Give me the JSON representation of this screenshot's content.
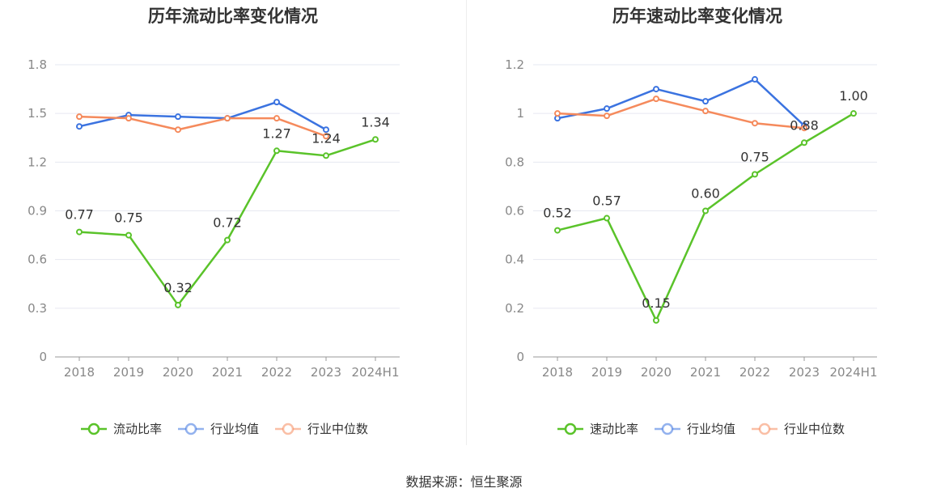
{
  "source": "数据来源：恒生聚源",
  "chart_data": [
    {
      "type": "line",
      "title": "历年流动比率变化情况",
      "categories": [
        "2018",
        "2019",
        "2020",
        "2021",
        "2022",
        "2023",
        "2024H1"
      ],
      "ylim": [
        0,
        1.8
      ],
      "yticks": [
        "0",
        "0.3",
        "0.6",
        "0.9",
        "1.2",
        "1.5",
        "1.8"
      ],
      "series": [
        {
          "name": "流动比率",
          "color": "#5ac32a",
          "values": [
            0.77,
            0.75,
            0.32,
            0.72,
            1.27,
            1.24,
            1.34
          ],
          "labels": [
            "0.77",
            "0.75",
            "0.32",
            "0.72",
            "1.27",
            "1.24",
            "1.34"
          ]
        },
        {
          "name": "行业均值",
          "color": "#3b73e0",
          "values": [
            1.42,
            1.49,
            1.48,
            1.47,
            1.57,
            1.4,
            null
          ]
        },
        {
          "name": "行业中位数",
          "color": "#f58a5c",
          "values": [
            1.48,
            1.47,
            1.4,
            1.47,
            1.47,
            1.36,
            null
          ]
        }
      ],
      "legend": [
        {
          "name": "流动比率",
          "color": "#5ac32a",
          "faded": false
        },
        {
          "name": "行业均值",
          "color": "#3b73e0",
          "faded": true
        },
        {
          "name": "行业中位数",
          "color": "#f58a5c",
          "faded": true
        }
      ]
    },
    {
      "type": "line",
      "title": "历年速动比率变化情况",
      "categories": [
        "2018",
        "2019",
        "2020",
        "2021",
        "2022",
        "2023",
        "2024H1"
      ],
      "ylim": [
        0,
        1.2
      ],
      "yticks": [
        "0",
        "0.2",
        "0.4",
        "0.6",
        "0.8",
        "1",
        "1.2"
      ],
      "series": [
        {
          "name": "速动比率",
          "color": "#5ac32a",
          "values": [
            0.52,
            0.57,
            0.15,
            0.6,
            0.75,
            0.88,
            1.0
          ],
          "labels": [
            "0.52",
            "0.57",
            "0.15",
            "0.60",
            "0.75",
            "0.88",
            "1.00"
          ]
        },
        {
          "name": "行业均值",
          "color": "#3b73e0",
          "values": [
            0.98,
            1.02,
            1.1,
            1.05,
            1.14,
            0.95,
            null
          ]
        },
        {
          "name": "行业中位数",
          "color": "#f58a5c",
          "values": [
            1.0,
            0.99,
            1.06,
            1.01,
            0.96,
            0.94,
            null
          ]
        }
      ],
      "legend": [
        {
          "name": "速动比率",
          "color": "#5ac32a",
          "faded": false
        },
        {
          "name": "行业均值",
          "color": "#3b73e0",
          "faded": true
        },
        {
          "name": "行业中位数",
          "color": "#f58a5c",
          "faded": true
        }
      ]
    }
  ]
}
